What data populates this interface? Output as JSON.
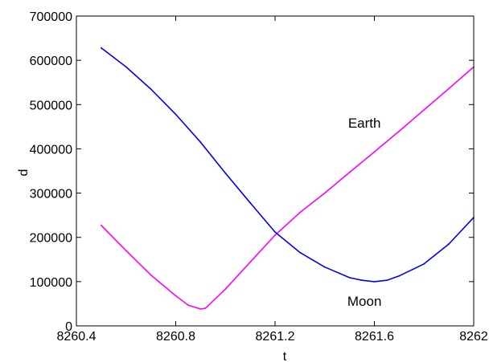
{
  "chart_data": {
    "type": "line",
    "title": "",
    "xlabel": "t",
    "ylabel": "d",
    "xlim": [
      8260.4,
      8262.0
    ],
    "ylim": [
      0,
      700000
    ],
    "x_ticks": [
      8260.4,
      8260.8,
      8261.2,
      8261.6,
      8262.0
    ],
    "x_tick_labels": [
      "8260.4",
      "8260.8",
      "8261.2",
      "8261.6",
      "8262"
    ],
    "y_ticks": [
      0,
      100000,
      200000,
      300000,
      400000,
      500000,
      600000,
      700000
    ],
    "y_tick_labels": [
      "0",
      "100000",
      "200000",
      "300000",
      "400000",
      "500000",
      "600000",
      "700000"
    ],
    "grid": false,
    "annotations": [
      {
        "text": "Earth",
        "x": 8261.56,
        "y": 448000
      },
      {
        "text": "Moon",
        "x": 8261.56,
        "y": 45000
      }
    ],
    "series": [
      {
        "color": "#ff00ff",
        "x": [
          8260.5,
          8260.6,
          8260.7,
          8260.8,
          8260.85,
          8260.9,
          8260.92,
          8261.0,
          8261.1,
          8261.2,
          8261.3,
          8261.4,
          8261.5,
          8261.6,
          8261.7,
          8261.8,
          8261.9,
          8262.0
        ],
        "y": [
          227000,
          170000,
          115000,
          68000,
          47000,
          38000,
          40000,
          83000,
          144000,
          205000,
          256000,
          300000,
          347000,
          393000,
          440000,
          488000,
          536000,
          585000
        ]
      },
      {
        "color": "#0000ff",
        "x": [
          8260.5,
          8260.6,
          8260.7,
          8260.8,
          8260.9,
          8261.0,
          8261.1,
          8261.2,
          8261.3,
          8261.4,
          8261.5,
          8261.55,
          8261.6,
          8261.65,
          8261.7,
          8261.8,
          8261.9,
          8262.0
        ],
        "y": [
          628000,
          585000,
          535000,
          478000,
          415000,
          345000,
          278000,
          212000,
          166000,
          133000,
          109000,
          103000,
          100000,
          103000,
          113000,
          140000,
          185000,
          245000
        ]
      }
    ]
  }
}
